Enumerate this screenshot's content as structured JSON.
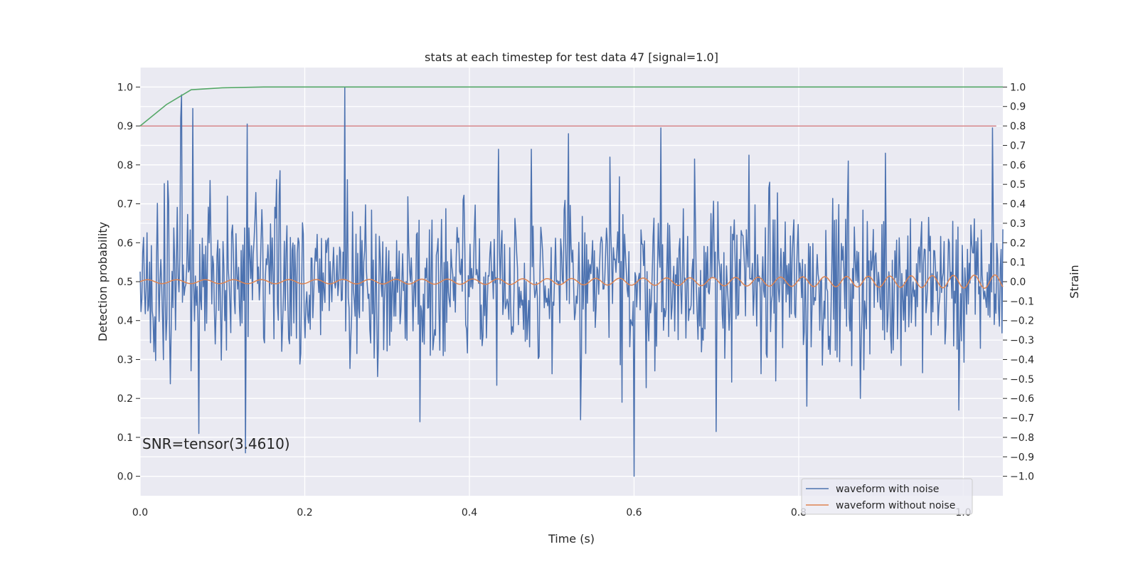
{
  "chart_data": {
    "type": "line",
    "title": "stats at each timestep for test data 47 [signal=1.0]",
    "xlabel": "Time (s)",
    "ylabel_left": "Detection probability",
    "ylabel_right": "Strain",
    "xlim": [
      0.0,
      1.048
    ],
    "ylim_left": [
      -0.05,
      1.05
    ],
    "ylim_right": [
      -1.1,
      1.1
    ],
    "x_ticks": [
      "0.0",
      "0.2",
      "0.4",
      "0.6",
      "0.8",
      "1.0"
    ],
    "y_ticks_left": [
      "0.0",
      "0.1",
      "0.2",
      "0.3",
      "0.4",
      "0.5",
      "0.6",
      "0.7",
      "0.8",
      "0.9",
      "1.0"
    ],
    "y_ticks_right": [
      "−1.0",
      "−0.9",
      "−0.8",
      "−0.7",
      "−0.6",
      "−0.5",
      "−0.4",
      "−0.3",
      "−0.2",
      "−0.1",
      "0.0",
      "0.1",
      "0.2",
      "0.3",
      "0.4",
      "0.5",
      "0.6",
      "0.7",
      "0.8",
      "0.9",
      "1.0"
    ],
    "grid": true,
    "legend_position": "lower-right",
    "annotation": "SNR=tensor(3.4610)",
    "threshold": {
      "y": 0.9,
      "color": "#c44e52"
    },
    "detection_probability": {
      "color": "#55a868",
      "x": [
        0.0,
        0.032,
        0.062,
        0.1,
        0.15,
        1.048
      ],
      "y": [
        0.9,
        0.955,
        0.993,
        0.998,
        1.0,
        1.0
      ]
    },
    "series": [
      {
        "name": "waveform with noise",
        "color": "#4c72b0",
        "x_start": 0.0,
        "x_end": 1.048,
        "n_points": 1000,
        "highlights": [
          {
            "x": 0.049,
            "y": 0.84
          },
          {
            "x": 0.05,
            "y": 0.96
          },
          {
            "x": 0.064,
            "y": 0.89
          },
          {
            "x": 0.071,
            "y": -0.78
          },
          {
            "x": 0.128,
            "y": -0.88
          },
          {
            "x": 0.13,
            "y": 0.81
          },
          {
            "x": 0.249,
            "y": 1.0
          },
          {
            "x": 0.34,
            "y": -0.72
          },
          {
            "x": 0.52,
            "y": 0.76
          },
          {
            "x": 0.535,
            "y": -0.71
          },
          {
            "x": 0.6,
            "y": -1.0
          },
          {
            "x": 0.633,
            "y": 0.79
          },
          {
            "x": 0.7,
            "y": -0.77
          },
          {
            "x": 1.035,
            "y": 0.79
          },
          {
            "x": 0.085,
            "y": 0.52
          },
          {
            "x": 0.17,
            "y": 0.57
          },
          {
            "x": 0.435,
            "y": 0.68
          },
          {
            "x": 0.475,
            "y": 0.68
          },
          {
            "x": 0.571,
            "y": 0.64
          },
          {
            "x": 0.673,
            "y": 0.63
          },
          {
            "x": 0.74,
            "y": 0.65
          },
          {
            "x": 0.86,
            "y": 0.62
          },
          {
            "x": 0.905,
            "y": 0.66
          },
          {
            "x": 0.585,
            "y": -0.62
          },
          {
            "x": 0.81,
            "y": -0.64
          },
          {
            "x": 0.875,
            "y": -0.6
          },
          {
            "x": 0.995,
            "y": -0.66
          }
        ]
      },
      {
        "name": "waveform without noise",
        "color": "#dd8452",
        "x_start": 0.0,
        "x_end": 1.048,
        "amplitude_start": 0.01,
        "amplitude_end": 0.035,
        "frequency_start": 28,
        "frequency_end": 40
      }
    ]
  }
}
